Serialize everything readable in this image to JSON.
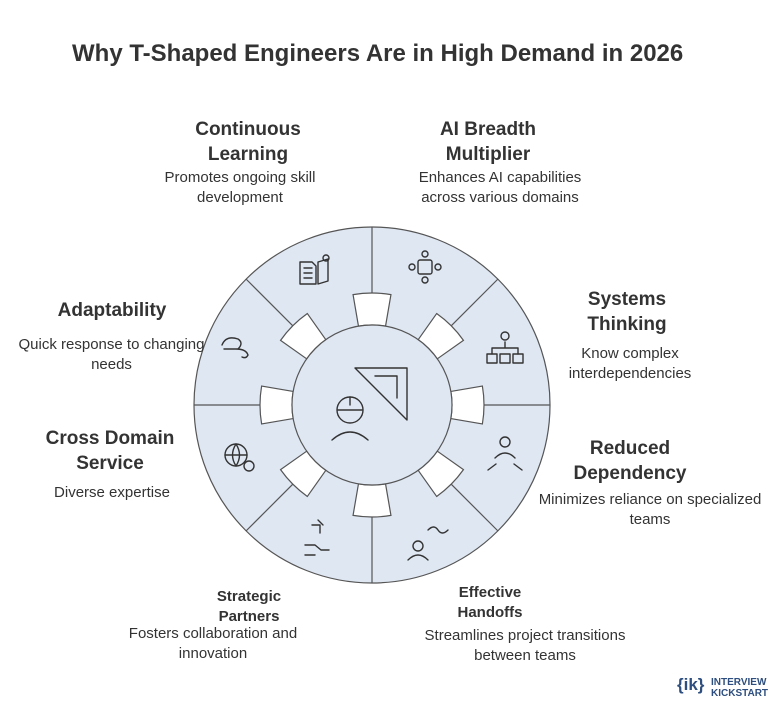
{
  "title": "Why T-Shaped Engineers Are in High Demand in 2026",
  "items": [
    {
      "title": "Continuous Learning",
      "description": "Promotes ongoing skill development"
    },
    {
      "title": "AI Breadth Multiplier",
      "description": "Enhances AI capabilities across various domains"
    },
    {
      "title": "Systems Thinking",
      "description": "Know complex interdependencies"
    },
    {
      "title": "Reduced Dependency",
      "description": "Minimizes reliance on specialized teams"
    },
    {
      "title": "Effective Handoffs",
      "description": "Streamlines project transitions between teams"
    },
    {
      "title": "Strategic Partners",
      "description": "Fosters collaboration and innovation"
    },
    {
      "title": "Cross Domain Service",
      "description": "Diverse expertise"
    },
    {
      "title": "Adaptability",
      "description": "Quick response to changing needs"
    }
  ],
  "logo": {
    "mark": "{ik}",
    "line1": "INTERVIEW",
    "line2": "KICKSTART"
  }
}
